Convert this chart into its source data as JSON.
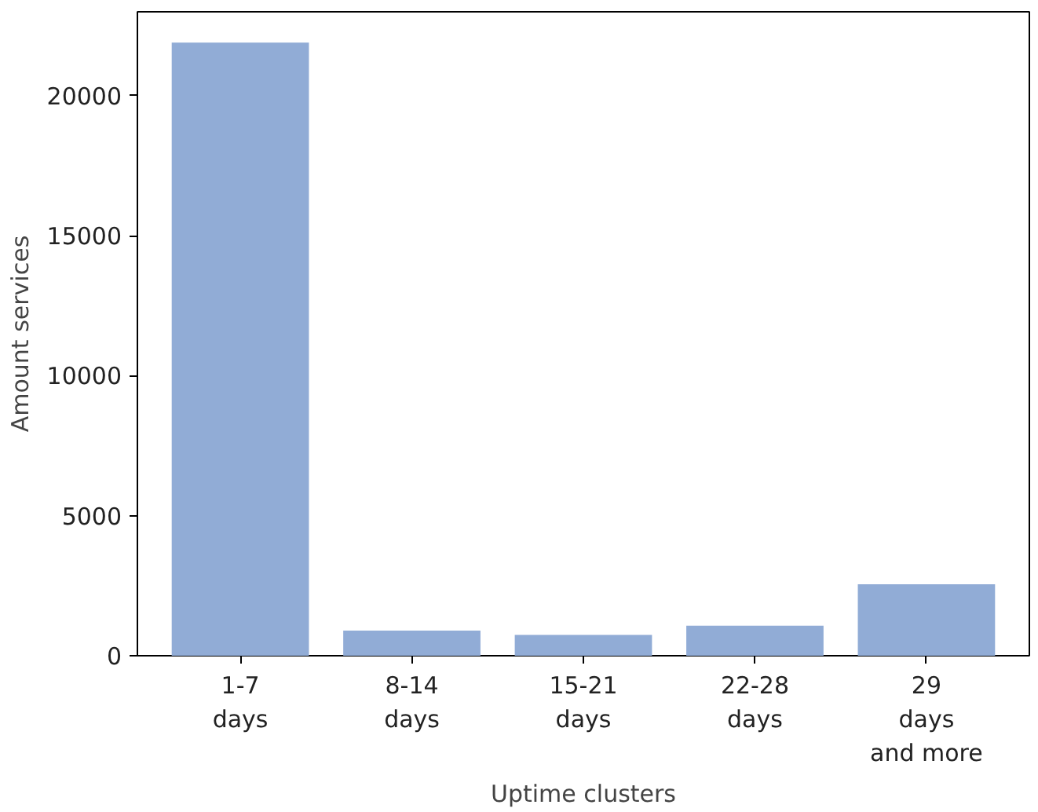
{
  "chart_data": {
    "type": "bar",
    "xlabel": "Uptime clusters",
    "ylabel": "Amount services",
    "categories": [
      "1-7\ndays",
      "8-14\ndays",
      "15-21\ndays",
      "22-28\ndays",
      "29\ndays\nand more"
    ],
    "values": [
      21900,
      900,
      740,
      1070,
      2550
    ],
    "color": "#91acd6",
    "ylim": [
      0,
      23000
    ],
    "yticks": [
      0,
      5000,
      10000,
      15000,
      20000
    ],
    "grid": false
  }
}
